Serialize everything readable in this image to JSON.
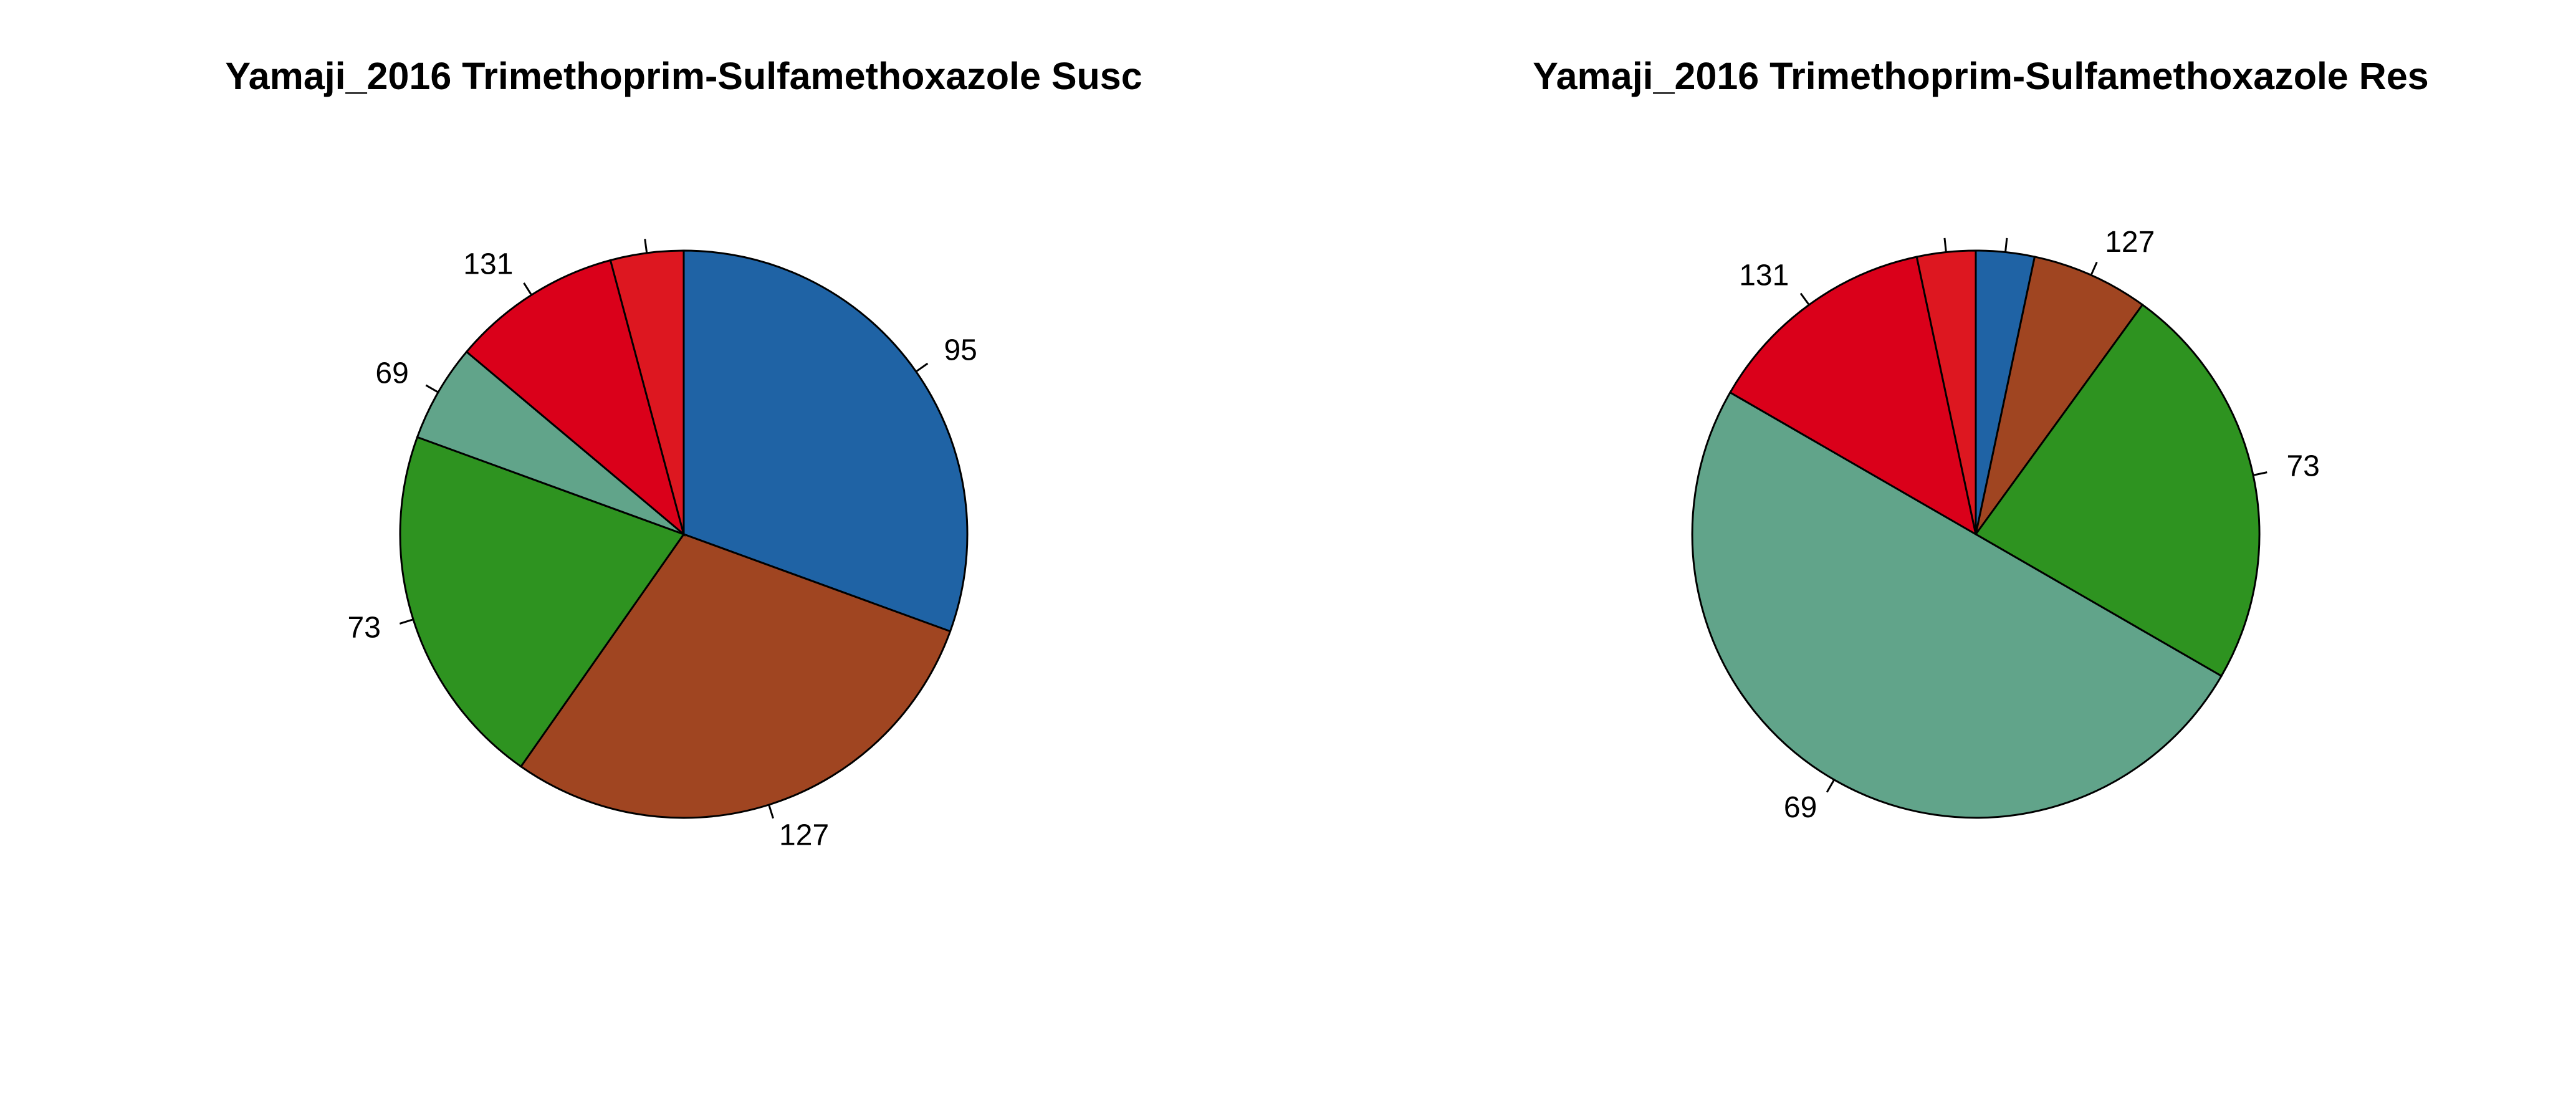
{
  "chart_data": [
    {
      "type": "pie",
      "title": "Yamaji_2016 Trimethoprim-Sulfamethoxazole Susc",
      "start": "top",
      "direction": "clockwise",
      "slices": [
        {
          "label": "95",
          "value": 0.3056,
          "color": "#1F63A5"
        },
        {
          "label": "127",
          "value": 0.2917,
          "color": "#A04521"
        },
        {
          "label": "73",
          "value": 0.2083,
          "color": "#2E9320"
        },
        {
          "label": "69",
          "value": 0.0556,
          "color": "#61A48A"
        },
        {
          "label": "131",
          "value": 0.0972,
          "color": "#DA001A"
        },
        {
          "label": "",
          "value": 0.0416,
          "color": "#DD1720"
        }
      ]
    },
    {
      "type": "pie",
      "title": "Yamaji_2016 Trimethoprim-Sulfamethoxazole Res",
      "start": "top",
      "direction": "clockwise",
      "slices": [
        {
          "label": "",
          "value": 0.0333,
          "color": "#1F63A5"
        },
        {
          "label": "127",
          "value": 0.0667,
          "color": "#A04521"
        },
        {
          "label": "73",
          "value": 0.2333,
          "color": "#2E9320"
        },
        {
          "label": "69",
          "value": 0.5,
          "color": "#61A48A"
        },
        {
          "label": "131",
          "value": 0.1333,
          "color": "#DA001A"
        },
        {
          "label": "",
          "value": 0.0334,
          "color": "#DD1720"
        }
      ]
    }
  ]
}
